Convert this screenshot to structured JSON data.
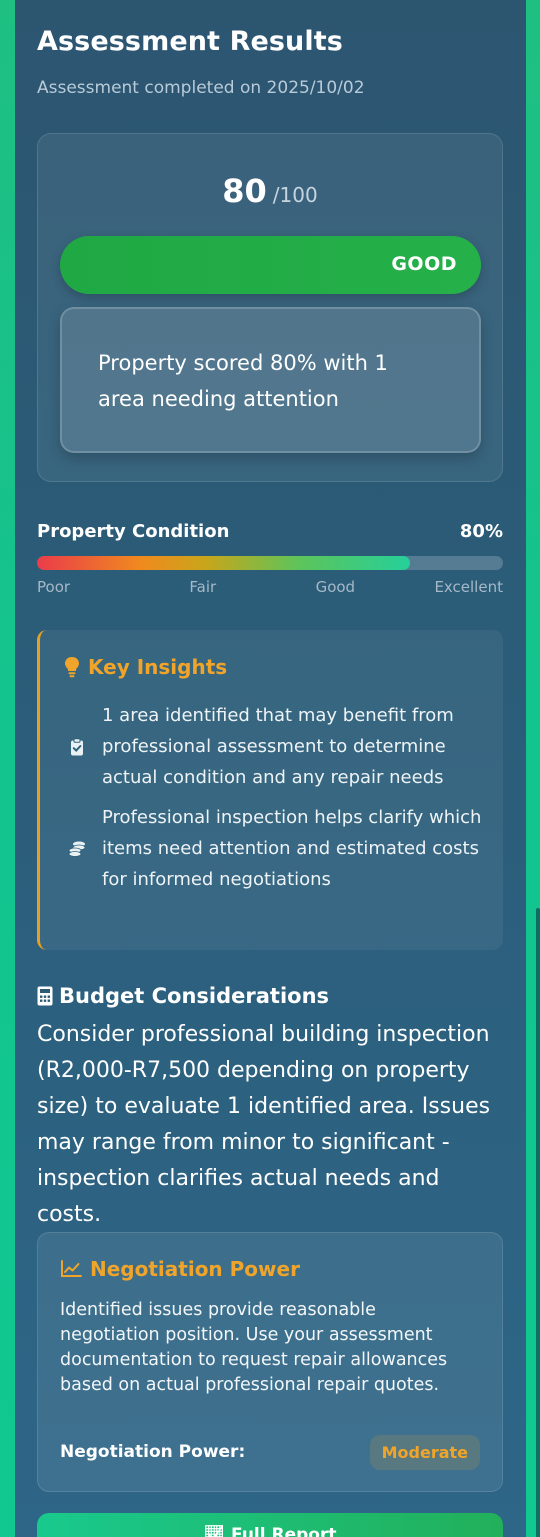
{
  "header": {
    "title": "Assessment Results",
    "subtitle": "Assessment completed on 2025/10/02"
  },
  "score": {
    "value": "80",
    "max": "/100",
    "grade": "GOOD",
    "summary": "Property scored 80% with 1 area needing attention"
  },
  "condition": {
    "label": "Property Condition",
    "value_text": "80%",
    "level": 0.8,
    "scale": [
      "Poor",
      "Fair",
      "Good",
      "Excellent"
    ]
  },
  "insights": {
    "title": "Key Insights",
    "items": [
      {
        "icon": "clipboard-check-icon",
        "text": "1 area identified that may benefit from professional assessment to determine actual condition and any repair needs"
      },
      {
        "icon": "coins-icon",
        "text": "Professional inspection helps clarify which items need attention and estimated costs for informed negotiations"
      }
    ]
  },
  "budget": {
    "title": "Budget Considerations",
    "text": "Consider professional building inspection (R2,000-R7,500 depending on property size) to evaluate 1 identified area. Issues may range from minor to significant - inspection clarifies actual needs and costs."
  },
  "negotiation": {
    "title": "Negotiation Power",
    "text": "Identified issues provide reasonable negotiation position. Use your assessment documentation to request repair allowances based on actual professional repair quotes.",
    "label": "Negotiation Power:",
    "level": "Moderate"
  },
  "actions": {
    "full_report": "Full Report"
  },
  "colors": {
    "accent_orange": "#f0a52a",
    "good_green": "#26b04a",
    "panel": "#2b5c78"
  }
}
